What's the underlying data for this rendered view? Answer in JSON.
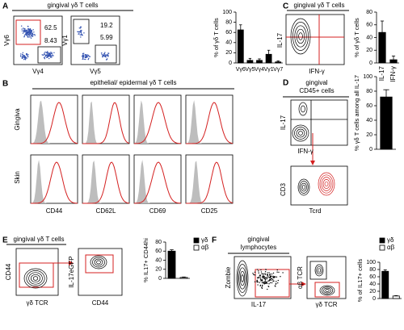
{
  "figure": {
    "A": {
      "letter": "A",
      "title": "gingival γδ T cells",
      "gates": [
        62.5,
        8.43,
        19.2,
        5.99
      ],
      "x_labels": [
        "Vγ4",
        "Vγ5"
      ],
      "y_labels": [
        "Vγ6",
        "Vγ1"
      ]
    },
    "B": {
      "letter": "B",
      "title": "epithelial/ epidermal γδ T cells",
      "rows": [
        "Gingiva",
        "Skin"
      ],
      "markers": [
        "CD44",
        "CD62L",
        "CD69",
        "CD25"
      ]
    },
    "C": {
      "letter": "C",
      "title": "gingival γδ T cells",
      "y_label": "IL-17",
      "x_label": "IFN-γ"
    },
    "D": {
      "letter": "D",
      "title": [
        "gingival",
        "CD45+ cells"
      ],
      "plot1_y": "IL-17",
      "plot1_x": "IFN-γ",
      "plot2_y": "CD3",
      "plot2_x": "Tcrd"
    },
    "E": {
      "letter": "E",
      "title": "gingival γδ T cells",
      "plot1_y": "CD44",
      "plot1_x": "γδ TCR",
      "plot2_y": "IL-17eGFP",
      "plot2_x": "CD44"
    },
    "F": {
      "letter": "F",
      "title": [
        "gingival",
        "lymphocytes"
      ],
      "plot1_y": "Zombie",
      "plot1_x": "IL-17",
      "plot2_y": "αβ TCR",
      "plot2_x": "γδ TCR"
    }
  },
  "chart_data": [
    {
      "type": "bar",
      "y_label": "% of γδ T cells",
      "categories": [
        "Vγ6",
        "Vγ5",
        "Vγ4",
        "Vγ1",
        "Vγ7"
      ],
      "values": [
        65,
        5,
        5,
        17,
        2
      ],
      "errors": [
        10,
        4,
        3,
        8,
        2
      ],
      "color": "#000000",
      "ylim": [
        0,
        100
      ],
      "yticks": [
        0,
        20,
        40,
        60,
        80,
        100
      ]
    },
    {
      "type": "bar",
      "y_label": "% of γδ T cells",
      "categories": [
        "IL-17",
        "IFN-γ"
      ],
      "values": [
        48,
        5
      ],
      "errors": [
        18,
        6
      ],
      "color": "#000000",
      "ylim": [
        0,
        80
      ],
      "yticks": [
        0,
        20,
        40,
        60,
        80
      ]
    },
    {
      "type": "bar",
      "y_label": "% γδ T cells among all IL-17",
      "categories": [
        null
      ],
      "values": [
        72
      ],
      "errors": [
        10
      ],
      "color": "#000000",
      "ylim": [
        0,
        100
      ],
      "yticks": [
        0,
        20,
        40,
        60,
        80,
        100
      ]
    },
    {
      "type": "bar",
      "y_label": "% IL17+ CD44hi",
      "series": [
        {
          "name": "γδ",
          "color": "#000000",
          "values": [
            60
          ],
          "errors": [
            3
          ]
        },
        {
          "name": "αβ",
          "color": "#ffffff",
          "values": [
            2
          ],
          "errors": [
            1
          ]
        }
      ],
      "ylim": [
        0,
        80
      ],
      "yticks": [
        0,
        20,
        40,
        60,
        80
      ]
    },
    {
      "type": "bar",
      "y_label": "% of IL17+ cells",
      "series": [
        {
          "name": "γδ",
          "color": "#000000",
          "values": [
            75
          ],
          "errors": [
            4
          ]
        },
        {
          "name": "αβ",
          "color": "#ffffff",
          "values": [
            7
          ],
          "errors": [
            1
          ]
        }
      ],
      "ylim": [
        0,
        100
      ],
      "yticks": [
        0,
        20,
        40,
        60,
        80,
        100
      ]
    }
  ]
}
